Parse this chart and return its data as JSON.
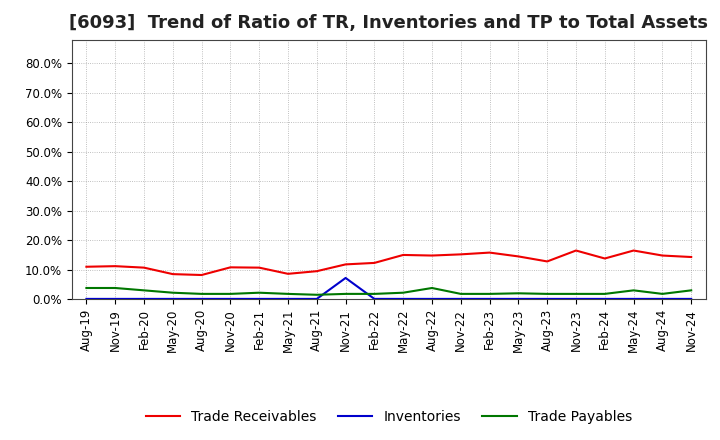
{
  "title": "[6093]  Trend of Ratio of TR, Inventories and TP to Total Assets",
  "ylim": [
    0.0,
    0.88
  ],
  "yticks": [
    0.0,
    0.1,
    0.2,
    0.3,
    0.4,
    0.5,
    0.6,
    0.7,
    0.8
  ],
  "ytick_labels": [
    "0.0%",
    "10.0%",
    "20.0%",
    "30.0%",
    "40.0%",
    "50.0%",
    "60.0%",
    "70.0%",
    "80.0%"
  ],
  "x_labels": [
    "Aug-19",
    "Nov-19",
    "Feb-20",
    "May-20",
    "Aug-20",
    "Nov-20",
    "Feb-21",
    "May-21",
    "Aug-21",
    "Nov-21",
    "Feb-22",
    "May-22",
    "Aug-22",
    "Nov-22",
    "Feb-23",
    "May-23",
    "Aug-23",
    "Nov-23",
    "Feb-24",
    "May-24",
    "Aug-24",
    "Nov-24"
  ],
  "trade_receivables": [
    0.11,
    0.112,
    0.107,
    0.085,
    0.082,
    0.108,
    0.107,
    0.086,
    0.095,
    0.118,
    0.123,
    0.15,
    0.148,
    0.152,
    0.158,
    0.145,
    0.128,
    0.165,
    0.138,
    0.165,
    0.148,
    0.143
  ],
  "inventories": [
    0.001,
    0.001,
    0.001,
    0.001,
    0.001,
    0.001,
    0.001,
    0.001,
    0.001,
    0.072,
    0.001,
    0.001,
    0.001,
    0.001,
    0.001,
    0.001,
    0.001,
    0.001,
    0.001,
    0.001,
    0.001,
    0.001
  ],
  "trade_payables": [
    0.038,
    0.038,
    0.03,
    0.022,
    0.018,
    0.018,
    0.022,
    0.018,
    0.015,
    0.018,
    0.018,
    0.022,
    0.038,
    0.018,
    0.018,
    0.02,
    0.018,
    0.018,
    0.018,
    0.03,
    0.018,
    0.03
  ],
  "tr_color": "#ee0000",
  "inv_color": "#0000cc",
  "tp_color": "#007700",
  "background_color": "#ffffff",
  "grid_color": "#888888",
  "title_fontsize": 13,
  "legend_fontsize": 10,
  "tick_fontsize": 8.5
}
